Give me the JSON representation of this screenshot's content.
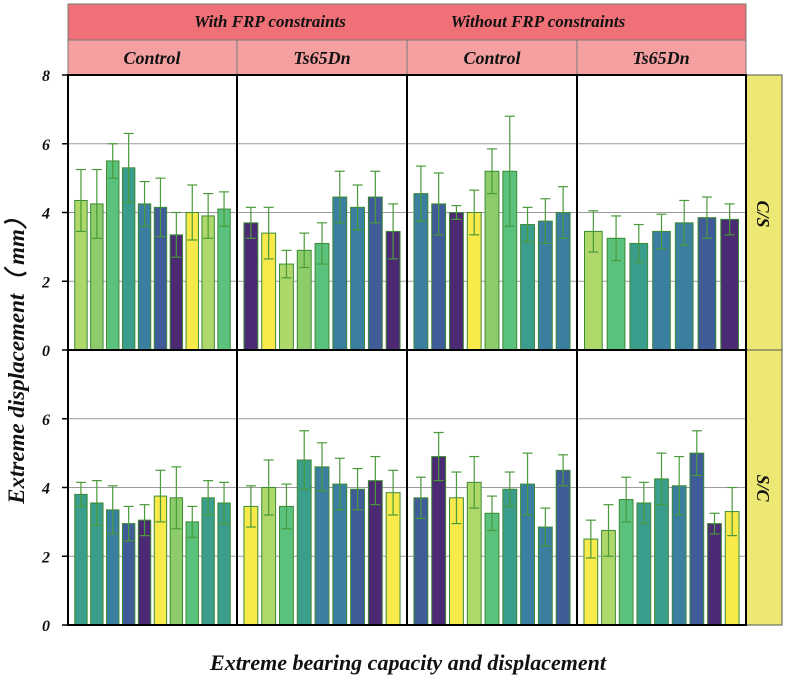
{
  "colors": {
    "top_header": "#f07078",
    "sub_header": "#f4a0a0",
    "row_strip": "#ede873",
    "gridline": "#9a9a9a",
    "errorbar": "#4a9a3a",
    "palette": [
      "#aed86a",
      "#8ccc6a",
      "#5bc27e",
      "#3b9e8c",
      "#3a7ea0",
      "#3f5c99",
      "#4b2a73",
      "#f7ea4a"
    ]
  },
  "chart_data": {
    "type": "bar",
    "title_headers": [
      "With FRP constraints",
      "Without FRP constraints"
    ],
    "column_headers": [
      "Control",
      "Ts65Dn",
      "Control",
      "Ts65Dn"
    ],
    "row_labels": [
      "C/S",
      "S/C"
    ],
    "xlabel": "Extreme bearing capacity and displacement",
    "ylabel": "Extreme displacement（ mm）",
    "ylim_top": [
      0,
      8
    ],
    "ylim_bottom": [
      0,
      8
    ],
    "yticks_top": [
      "0",
      "2",
      "4",
      "6",
      "8"
    ],
    "yticks_bottom": [
      "0",
      "2",
      "4",
      "6"
    ],
    "gridlines": [
      2,
      4,
      6
    ],
    "panels": [
      {
        "row": 0,
        "col": 0,
        "bars": [
          {
            "value": 4.35,
            "err": 0.9,
            "color": 0
          },
          {
            "value": 4.25,
            "err": 1.0,
            "color": 1
          },
          {
            "value": 5.5,
            "err": 0.5,
            "color": 2
          },
          {
            "value": 5.3,
            "err": 1.0,
            "color": 3
          },
          {
            "value": 4.25,
            "err": 0.65,
            "color": 4
          },
          {
            "value": 4.15,
            "err": 0.85,
            "color": 5
          },
          {
            "value": 3.35,
            "err": 0.65,
            "color": 6
          },
          {
            "value": 4.0,
            "err": 0.8,
            "color": 7
          },
          {
            "value": 3.9,
            "err": 0.65,
            "color": 0
          },
          {
            "value": 4.1,
            "err": 0.5,
            "color": 2
          }
        ]
      },
      {
        "row": 0,
        "col": 1,
        "bars": [
          {
            "value": 3.7,
            "err": 0.45,
            "color": 6
          },
          {
            "value": 3.4,
            "err": 0.75,
            "color": 7
          },
          {
            "value": 2.5,
            "err": 0.4,
            "color": 0
          },
          {
            "value": 2.9,
            "err": 0.5,
            "color": 1
          },
          {
            "value": 3.1,
            "err": 0.6,
            "color": 2
          },
          {
            "value": 4.45,
            "err": 0.75,
            "color": 4
          },
          {
            "value": 4.15,
            "err": 0.65,
            "color": 4
          },
          {
            "value": 4.45,
            "err": 0.75,
            "color": 5
          },
          {
            "value": 3.45,
            "err": 0.8,
            "color": 6
          }
        ]
      },
      {
        "row": 0,
        "col": 2,
        "bars": [
          {
            "value": 4.55,
            "err": 0.8,
            "color": 4
          },
          {
            "value": 4.25,
            "err": 0.9,
            "color": 5
          },
          {
            "value": 4.0,
            "err": 0.2,
            "color": 6
          },
          {
            "value": 4.0,
            "err": 0.65,
            "color": 7
          },
          {
            "value": 5.2,
            "err": 0.65,
            "color": 1
          },
          {
            "value": 5.2,
            "err": 1.6,
            "color": 2
          },
          {
            "value": 3.65,
            "err": 0.5,
            "color": 3
          },
          {
            "value": 3.75,
            "err": 0.65,
            "color": 4
          },
          {
            "value": 4.0,
            "err": 0.75,
            "color": 4
          }
        ]
      },
      {
        "row": 0,
        "col": 3,
        "bars": [
          {
            "value": 3.45,
            "err": 0.6,
            "color": 0
          },
          {
            "value": 3.25,
            "err": 0.65,
            "color": 2
          },
          {
            "value": 3.1,
            "err": 0.55,
            "color": 3
          },
          {
            "value": 3.45,
            "err": 0.5,
            "color": 4
          },
          {
            "value": 3.7,
            "err": 0.65,
            "color": 4
          },
          {
            "value": 3.85,
            "err": 0.6,
            "color": 5
          },
          {
            "value": 3.8,
            "err": 0.45,
            "color": 6
          }
        ]
      },
      {
        "row": 1,
        "col": 0,
        "bars": [
          {
            "value": 3.8,
            "err": 0.35,
            "color": 3
          },
          {
            "value": 3.55,
            "err": 0.65,
            "color": 3
          },
          {
            "value": 3.35,
            "err": 0.7,
            "color": 4
          },
          {
            "value": 2.95,
            "err": 0.5,
            "color": 5
          },
          {
            "value": 3.05,
            "err": 0.45,
            "color": 6
          },
          {
            "value": 3.75,
            "err": 0.75,
            "color": 7
          },
          {
            "value": 3.7,
            "err": 0.9,
            "color": 1
          },
          {
            "value": 3.0,
            "err": 0.45,
            "color": 2
          },
          {
            "value": 3.7,
            "err": 0.5,
            "color": 3
          },
          {
            "value": 3.55,
            "err": 0.6,
            "color": 3
          }
        ]
      },
      {
        "row": 1,
        "col": 1,
        "bars": [
          {
            "value": 3.45,
            "err": 0.6,
            "color": 7
          },
          {
            "value": 4.0,
            "err": 0.8,
            "color": 0
          },
          {
            "value": 3.45,
            "err": 0.65,
            "color": 2
          },
          {
            "value": 4.8,
            "err": 0.85,
            "color": 3
          },
          {
            "value": 4.6,
            "err": 0.7,
            "color": 4
          },
          {
            "value": 4.1,
            "err": 0.75,
            "color": 4
          },
          {
            "value": 3.95,
            "err": 0.6,
            "color": 5
          },
          {
            "value": 4.2,
            "err": 0.7,
            "color": 6
          },
          {
            "value": 3.85,
            "err": 0.65,
            "color": 7
          }
        ]
      },
      {
        "row": 1,
        "col": 2,
        "bars": [
          {
            "value": 3.7,
            "err": 0.6,
            "color": 5
          },
          {
            "value": 4.9,
            "err": 0.7,
            "color": 6
          },
          {
            "value": 3.7,
            "err": 0.75,
            "color": 7
          },
          {
            "value": 4.15,
            "err": 0.75,
            "color": 0
          },
          {
            "value": 3.25,
            "err": 0.5,
            "color": 2
          },
          {
            "value": 3.95,
            "err": 0.5,
            "color": 3
          },
          {
            "value": 4.1,
            "err": 0.9,
            "color": 4
          },
          {
            "value": 2.85,
            "err": 0.55,
            "color": 4
          },
          {
            "value": 4.5,
            "err": 0.45,
            "color": 5
          }
        ]
      },
      {
        "row": 1,
        "col": 3,
        "bars": [
          {
            "value": 2.5,
            "err": 0.55,
            "color": 7
          },
          {
            "value": 2.75,
            "err": 0.75,
            "color": 0
          },
          {
            "value": 3.65,
            "err": 0.65,
            "color": 2
          },
          {
            "value": 3.55,
            "err": 0.6,
            "color": 3
          },
          {
            "value": 4.25,
            "err": 0.75,
            "color": 3
          },
          {
            "value": 4.05,
            "err": 0.85,
            "color": 4
          },
          {
            "value": 5.0,
            "err": 0.65,
            "color": 5
          },
          {
            "value": 2.95,
            "err": 0.3,
            "color": 6
          },
          {
            "value": 3.3,
            "err": 0.7,
            "color": 7
          }
        ]
      }
    ]
  }
}
